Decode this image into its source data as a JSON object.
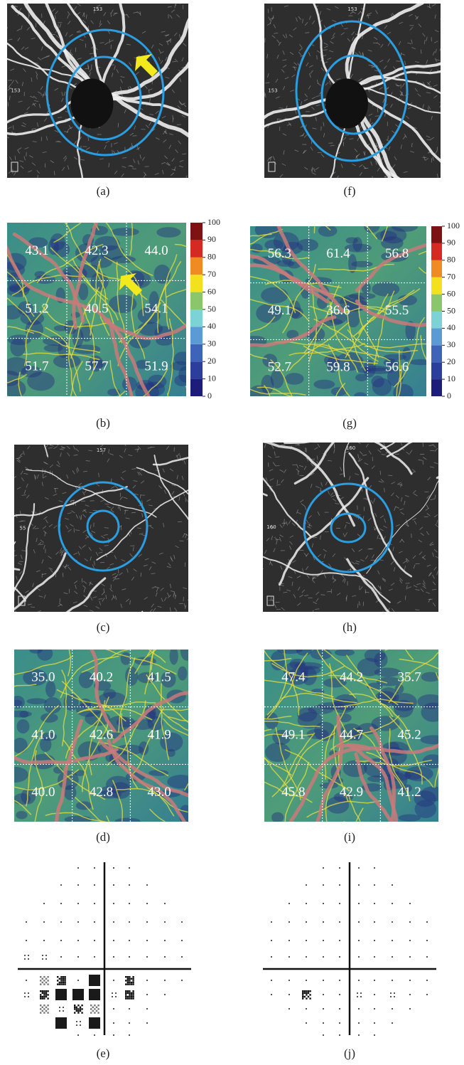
{
  "panels": {
    "a": {
      "label": "(a)",
      "image_labels": [
        "153",
        "153"
      ]
    },
    "b": {
      "label": "(b)",
      "values": [
        [
          "43.1",
          "42.3",
          "44.0"
        ],
        [
          "51.2",
          "40.5",
          "54.1"
        ],
        [
          "51.7",
          "57.7",
          "51.9"
        ]
      ]
    },
    "c": {
      "label": "(c)",
      "image_labels": [
        "157",
        "55"
      ]
    },
    "d": {
      "label": "(d)",
      "values": [
        [
          "35.0",
          "40.2",
          "41.5"
        ],
        [
          "41.0",
          "42.6",
          "41.9"
        ],
        [
          "40.0",
          "42.8",
          "43.0"
        ]
      ]
    },
    "e": {
      "label": "(e)"
    },
    "f": {
      "label": "(f)",
      "image_labels": [
        "153",
        "153"
      ]
    },
    "g": {
      "label": "(g)",
      "values": [
        [
          "56.3",
          "61.4",
          "56.8"
        ],
        [
          "49.1",
          "36.6",
          "55.5"
        ],
        [
          "52.7",
          "59.8",
          "56.6"
        ]
      ]
    },
    "h": {
      "label": "(h)",
      "image_labels": [
        "160",
        "160"
      ]
    },
    "i": {
      "label": "(i)",
      "values": [
        [
          "47.4",
          "44.2",
          "35.7"
        ],
        [
          "49.1",
          "44.7",
          "45.2"
        ],
        [
          "45.8",
          "42.9",
          "41.2"
        ]
      ]
    },
    "j": {
      "label": "(j)"
    }
  },
  "colorbar": {
    "ticks": [
      0,
      10,
      20,
      30,
      40,
      50,
      60,
      70,
      80,
      90,
      100
    ],
    "colors": [
      "#1c1c7a",
      "#2c3e9c",
      "#3f63b8",
      "#5a9bd6",
      "#7cd3d6",
      "#8cc66a",
      "#f2e21e",
      "#f08a22",
      "#d42a22",
      "#7e1212"
    ]
  }
}
